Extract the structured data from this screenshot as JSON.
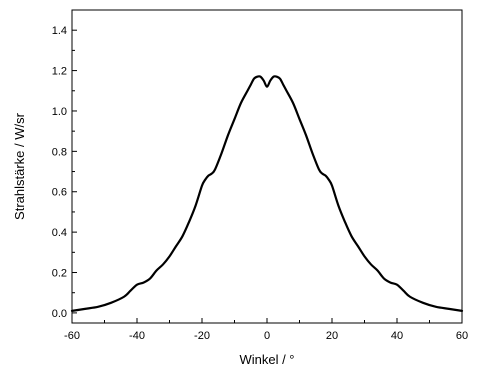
{
  "chart_data": {
    "type": "line",
    "xlabel": "Winkel / °",
    "ylabel": "Strahlstärke / W/sr",
    "xlim": [
      -60,
      60
    ],
    "ylim": [
      -0.05,
      1.5
    ],
    "xticks": [
      -60,
      -40,
      -20,
      0,
      20,
      40,
      60
    ],
    "xtick_labels": [
      "-60",
      "-40",
      "-20",
      "0",
      "20",
      "40",
      "60"
    ],
    "yticks": [
      0.0,
      0.2,
      0.4,
      0.6,
      0.8,
      1.0,
      1.2,
      1.4
    ],
    "ytick_labels": [
      "0.0",
      "0.2",
      "0.4",
      "0.6",
      "0.8",
      "1.0",
      "1.2",
      "1.4"
    ],
    "grid": false,
    "series": [
      {
        "color": "#000000",
        "x": [
          -60,
          -56,
          -52,
          -48,
          -44,
          -42,
          -40,
          -38,
          -36,
          -34,
          -32,
          -30,
          -28,
          -26,
          -24,
          -22,
          -20,
          -19,
          -18,
          -17,
          -16,
          -14,
          -12,
          -10,
          -8,
          -6,
          -5,
          -4,
          -3,
          -2,
          -1,
          0,
          1,
          2,
          3,
          4,
          5,
          6,
          8,
          10,
          12,
          14,
          16,
          17,
          18,
          19,
          20,
          22,
          24,
          26,
          28,
          30,
          32,
          34,
          36,
          38,
          40,
          42,
          44,
          48,
          52,
          56,
          60
        ],
        "y": [
          0.01,
          0.02,
          0.03,
          0.05,
          0.08,
          0.11,
          0.14,
          0.15,
          0.17,
          0.21,
          0.24,
          0.28,
          0.33,
          0.38,
          0.45,
          0.53,
          0.63,
          0.66,
          0.68,
          0.69,
          0.71,
          0.79,
          0.88,
          0.96,
          1.04,
          1.1,
          1.13,
          1.16,
          1.17,
          1.17,
          1.15,
          1.12,
          1.15,
          1.17,
          1.17,
          1.16,
          1.13,
          1.1,
          1.04,
          0.96,
          0.88,
          0.79,
          0.71,
          0.69,
          0.68,
          0.66,
          0.63,
          0.53,
          0.45,
          0.38,
          0.33,
          0.28,
          0.24,
          0.21,
          0.17,
          0.15,
          0.14,
          0.11,
          0.08,
          0.05,
          0.03,
          0.02,
          0.01
        ]
      }
    ]
  }
}
